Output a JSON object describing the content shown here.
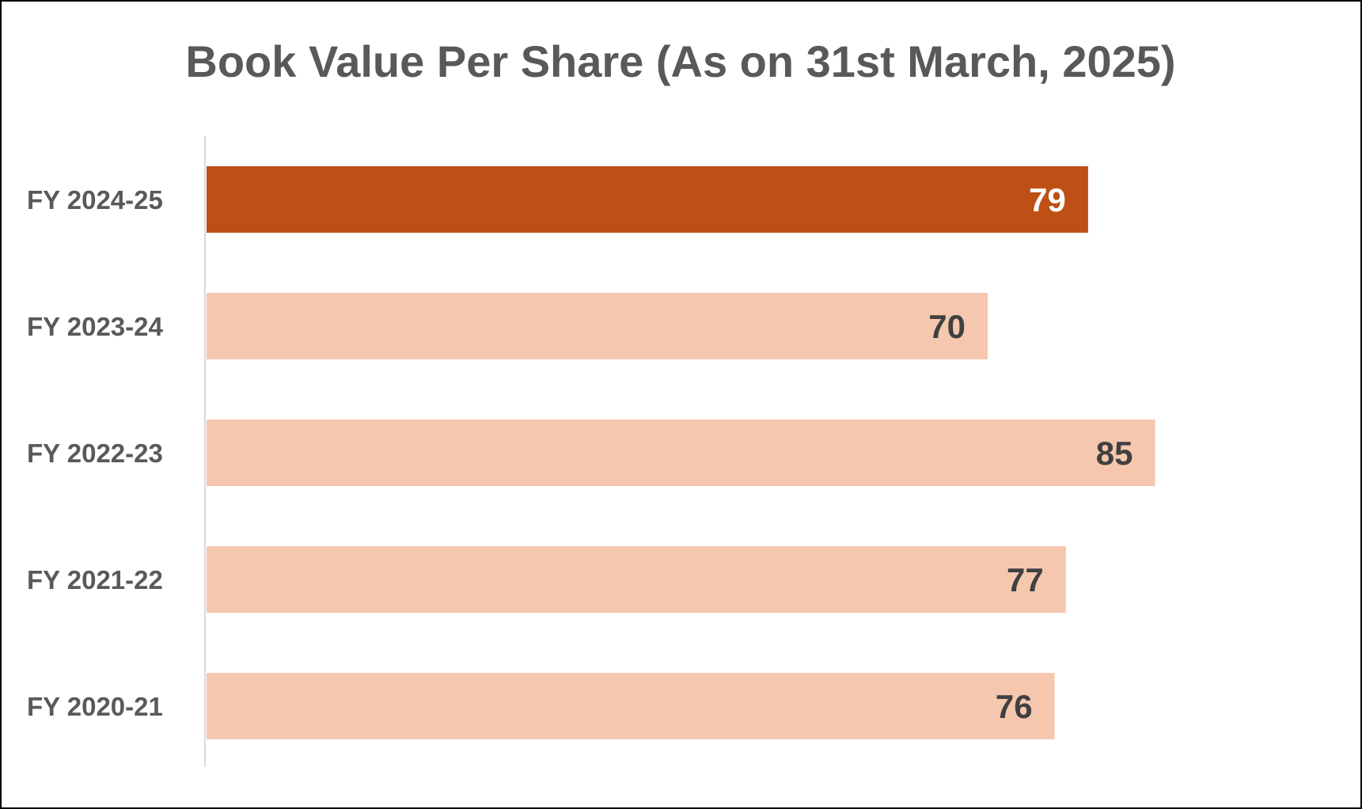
{
  "chart_data": {
    "type": "bar",
    "orientation": "horizontal",
    "title": "Book Value Per Share (As on 31st March, 2025)",
    "categories": [
      "FY 2024-25",
      "FY 2023-24",
      "FY 2022-23",
      "FY 2021-22",
      "FY 2020-21"
    ],
    "values": [
      79,
      70,
      85,
      77,
      76
    ],
    "xlabel": "",
    "ylabel": "",
    "xlim": [
      0,
      89
    ],
    "grid": false,
    "legend": "none",
    "colors": {
      "highlight_bar": "#BE4F15",
      "bar": "#F5C7AF",
      "highlight_label": "#FFFFFF",
      "label": "#404040",
      "axis": "#D9D9D9",
      "text": "#595959"
    },
    "highlight_index": 0
  }
}
